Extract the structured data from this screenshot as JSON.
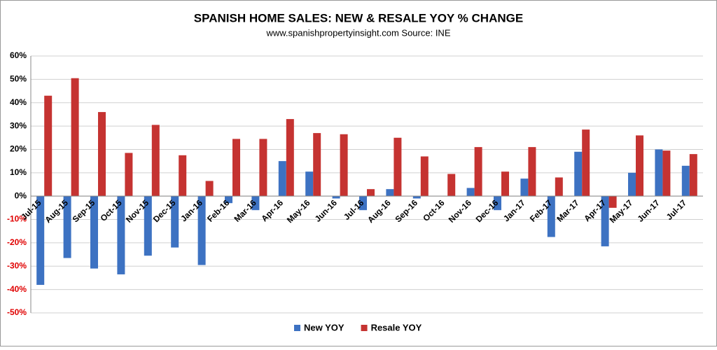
{
  "chart_data": {
    "type": "bar",
    "title": "SPANISH HOME SALES: NEW & RESALE YOY % CHANGE",
    "subtitle": "www.spanishpropertyinsight.com Source: INE",
    "categories": [
      "Jul-15",
      "Aug-15",
      "Sep-15",
      "Oct-15",
      "Nov-15",
      "Dec-15",
      "Jan-16",
      "Feb-16",
      "Mar-16",
      "Apr-16",
      "May-16",
      "Jun-16",
      "Jul-16",
      "Aug-16",
      "Sep-16",
      "Oct-16",
      "Nov-16",
      "Dec-16",
      "Jan-17",
      "Feb-17",
      "Mar-17",
      "Apr-17",
      "May-17",
      "Jun-17",
      "Jul-17"
    ],
    "series": [
      {
        "name": "New YOY",
        "color": "#3d72c2",
        "values": [
          -38,
          -26.5,
          -31,
          -33.5,
          -25.5,
          -22,
          -29.5,
          -3,
          -6,
          15,
          10.5,
          -1,
          -6,
          3,
          -1,
          0,
          3.5,
          -6,
          7.5,
          -17.5,
          19,
          -21.5,
          10,
          20,
          13
        ]
      },
      {
        "name": "Resale YOY",
        "color": "#c53331",
        "values": [
          43,
          50.5,
          36,
          18.5,
          30.5,
          17.5,
          6.5,
          24.5,
          24.5,
          33,
          27,
          26.5,
          3,
          25,
          17,
          9.5,
          21,
          10.5,
          21,
          8,
          28.5,
          -5,
          26,
          19.5,
          18
        ]
      }
    ],
    "ylim": [
      -50,
      60
    ],
    "yticks": [
      {
        "value": 60,
        "label": "60%"
      },
      {
        "value": 50,
        "label": "50%"
      },
      {
        "value": 40,
        "label": "40%"
      },
      {
        "value": 30,
        "label": "30%"
      },
      {
        "value": 20,
        "label": "20%"
      },
      {
        "value": 10,
        "label": "10%"
      },
      {
        "value": 0,
        "label": "0%"
      },
      {
        "value": -10,
        "label": "-10%"
      },
      {
        "value": -20,
        "label": "-20%"
      },
      {
        "value": -30,
        "label": "-30%"
      },
      {
        "value": -40,
        "label": "-40%"
      },
      {
        "value": -50,
        "label": "-50%"
      }
    ],
    "grid": true,
    "negative_tick_color": "#e00000",
    "legend": "bottom"
  }
}
